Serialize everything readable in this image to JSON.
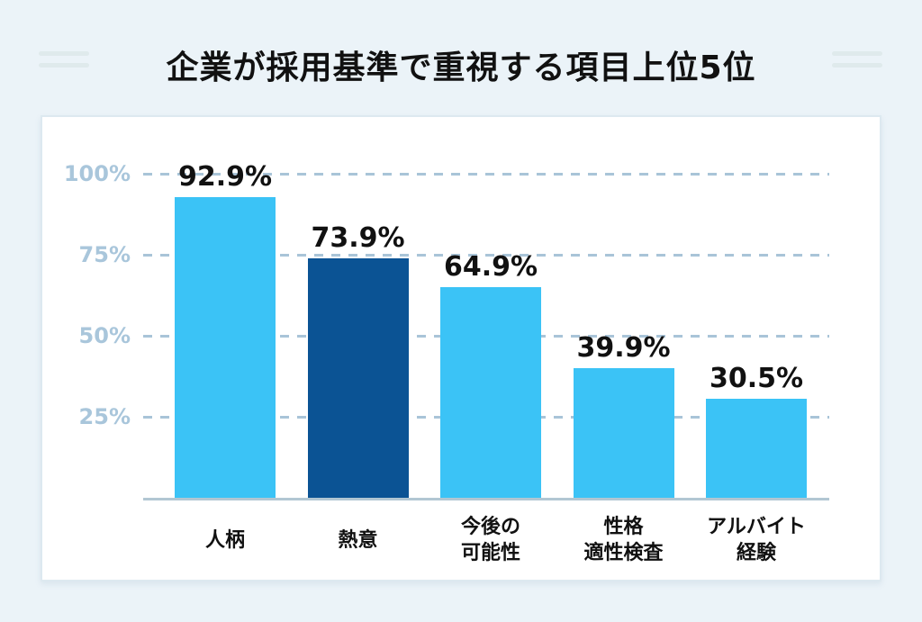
{
  "title": "企業が採用基準で重視する項目上位5位",
  "colors": {
    "page_background": "#ebf3f8",
    "card_background": "#ffffff",
    "card_border": "#dde9f0",
    "bar_default": "#3bc3f6",
    "bar_highlight": "#0b5394",
    "gridline": "#a9c4d8",
    "axis_line": "#b2c7d3",
    "ytick_label": "#a9c6db",
    "value_label": "#111111",
    "category_label": "#111111",
    "title_text": "#111111",
    "decor_line": "#dfeaec"
  },
  "chart_data": {
    "type": "bar",
    "title": "企業が採用基準で重視する項目上位5位",
    "categories": [
      "人柄",
      "熱意",
      "今後の\n可能性",
      "性格\n適性検査",
      "アルバイト\n経験"
    ],
    "values": [
      92.9,
      73.9,
      64.9,
      39.9,
      30.5
    ],
    "value_labels": [
      "92.9%",
      "73.9%",
      "64.9%",
      "39.9%",
      "30.5%"
    ],
    "bar_colors": [
      "#3bc3f6",
      "#0b5394",
      "#3bc3f6",
      "#3bc3f6",
      "#3bc3f6"
    ],
    "highlighted_category": "熱意",
    "xlabel": "",
    "ylabel": "",
    "ylim": [
      0,
      100
    ],
    "yticks": [
      {
        "value": 100,
        "label": "100%"
      },
      {
        "value": 75,
        "label": "75%"
      },
      {
        "value": 50,
        "label": "50%"
      },
      {
        "value": 25,
        "label": "25%"
      }
    ],
    "grid": "horizontal-dashed",
    "legend": "none"
  }
}
